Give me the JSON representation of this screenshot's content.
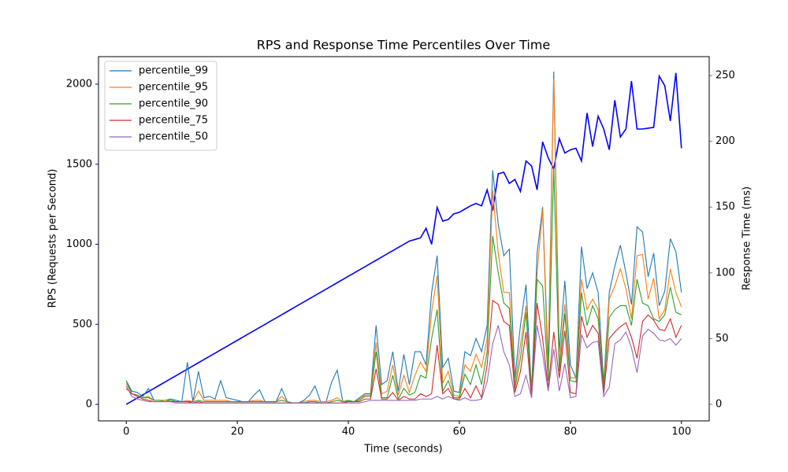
{
  "chart_data": {
    "type": "line",
    "title": "RPS and Response Time Percentiles Over Time",
    "x_label": "Time (seconds)",
    "y_label": "RPS (Requests per Second)",
    "y2_label": "Response Time (ms)",
    "y_color": "#0000ff",
    "y2_color": "#808080",
    "legend": "upper left",
    "x": [
      0,
      1,
      2,
      3,
      4,
      5,
      6,
      7,
      8,
      9,
      10,
      11,
      12,
      13,
      14,
      15,
      16,
      17,
      18,
      19,
      20,
      21,
      22,
      23,
      24,
      25,
      26,
      27,
      28,
      29,
      30,
      31,
      32,
      33,
      34,
      35,
      36,
      37,
      38,
      39,
      40,
      41,
      42,
      43,
      44,
      45,
      46,
      47,
      48,
      49,
      50,
      51,
      52,
      53,
      54,
      55,
      56,
      57,
      58,
      59,
      60,
      61,
      62,
      63,
      64,
      65,
      66,
      67,
      68,
      69,
      70,
      71,
      72,
      73,
      74,
      75,
      76,
      77,
      78,
      79,
      80,
      81,
      82,
      83,
      84,
      85,
      86,
      87,
      88,
      89,
      90,
      91,
      92,
      93,
      94,
      95,
      96,
      97,
      98,
      99,
      100
    ],
    "xlim": [
      -5,
      105
    ],
    "xticks": [
      0,
      20,
      40,
      60,
      80,
      100
    ],
    "ylim": [
      -103,
      2172
    ],
    "yticks": [
      0,
      500,
      1000,
      1500,
      2000
    ],
    "y2lim": [
      -12.6,
      264.4
    ],
    "y2ticks": [
      0,
      50,
      100,
      150,
      200,
      250
    ],
    "series": [
      {
        "color": "#0000ff",
        "axis": "y",
        "values": [
          0,
          20,
          40,
          60,
          80,
          100,
          120,
          140,
          160,
          180,
          200,
          220,
          240,
          260,
          280,
          300,
          320,
          340,
          360,
          380,
          400,
          420,
          440,
          460,
          480,
          500,
          520,
          540,
          560,
          580,
          600,
          620,
          640,
          660,
          680,
          700,
          720,
          740,
          760,
          780,
          800,
          820,
          840,
          860,
          880,
          900,
          920,
          940,
          960,
          980,
          1000,
          1020,
          1030,
          1040,
          1100,
          1000,
          1230,
          1145,
          1155,
          1190,
          1200,
          1220,
          1240,
          1255,
          1240,
          1340,
          1210,
          1440,
          1450,
          1380,
          1405,
          1330,
          1520,
          1490,
          1340,
          1640,
          1540,
          1470,
          1660,
          1570,
          1590,
          1600,
          1520,
          1820,
          1610,
          1800,
          1720,
          1590,
          1900,
          1670,
          1720,
          2020,
          1720,
          1720,
          1725,
          1730,
          2050,
          1990,
          1770,
          2070,
          1600
        ]
      },
      {
        "name": "percentile_99",
        "color": "#1f77b4",
        "axis": "y2",
        "values": [
          18,
          10,
          9,
          6,
          12,
          3,
          3,
          3,
          4,
          3,
          2,
          32,
          2,
          25,
          5,
          6,
          4,
          18,
          5,
          4,
          3,
          2,
          2,
          7,
          11,
          2,
          2,
          2,
          12,
          2,
          1,
          1,
          3,
          7,
          14,
          2,
          2,
          17,
          26,
          2,
          3,
          2,
          5,
          8,
          8,
          60,
          15,
          18,
          40,
          10,
          38,
          15,
          40,
          40,
          30,
          85,
          113,
          28,
          35,
          10,
          9,
          40,
          37,
          50,
          40,
          60,
          178,
          137,
          113,
          118,
          20,
          60,
          91,
          10,
          115,
          150,
          30,
          253,
          40,
          94,
          30,
          20,
          120,
          88,
          100,
          85,
          16,
          85,
          105,
          121,
          100,
          76,
          135,
          131,
          97,
          115,
          75,
          86,
          126,
          116,
          85
        ]
      },
      {
        "name": "percentile_95",
        "color": "#ff7f0e",
        "axis": "y2",
        "values": [
          16,
          8,
          7,
          5,
          6,
          3,
          3,
          3,
          3,
          2,
          2,
          3,
          2,
          10,
          3,
          3,
          3,
          3,
          3,
          2,
          2,
          2,
          2,
          3,
          3,
          2,
          2,
          2,
          6,
          2,
          1,
          1,
          2,
          3,
          3,
          2,
          2,
          3,
          5,
          2,
          2,
          2,
          4,
          7,
          7,
          47,
          8,
          10,
          30,
          7,
          22,
          9,
          22,
          32,
          25,
          70,
          98,
          16,
          25,
          7,
          6,
          30,
          25,
          38,
          28,
          50,
          163,
          115,
          85,
          85,
          15,
          45,
          75,
          8,
          100,
          148,
          20,
          248,
          30,
          76,
          20,
          20,
          95,
          72,
          80,
          72,
          12,
          80,
          90,
          103,
          88,
          65,
          113,
          114,
          80,
          96,
          65,
          72,
          103,
          85,
          74
        ]
      },
      {
        "name": "percentile_90",
        "color": "#2ca02c",
        "axis": "y2",
        "values": [
          18,
          8,
          7,
          5,
          5,
          3,
          3,
          2,
          3,
          2,
          2,
          2,
          2,
          3,
          2,
          2,
          2,
          2,
          2,
          2,
          2,
          2,
          2,
          2,
          2,
          2,
          2,
          2,
          3,
          2,
          1,
          1,
          1,
          2,
          2,
          1,
          1,
          2,
          3,
          2,
          3,
          2,
          3,
          6,
          6,
          40,
          5,
          5,
          22,
          4,
          12,
          7,
          9,
          22,
          20,
          50,
          72,
          10,
          18,
          5,
          5,
          23,
          15,
          30,
          15,
          40,
          128,
          100,
          77,
          73,
          12,
          35,
          70,
          8,
          95,
          90,
          18,
          180,
          25,
          69,
          18,
          17,
          85,
          60,
          75,
          65,
          12,
          66,
          72,
          75,
          75,
          60,
          95,
          77,
          75,
          65,
          63,
          68,
          89,
          70,
          68
        ]
      },
      {
        "name": "percentile_75",
        "color": "#d62728",
        "axis": "y2",
        "values": [
          12,
          8,
          6,
          4,
          3,
          2,
          2,
          2,
          2,
          2,
          2,
          2,
          1,
          2,
          1,
          1,
          1,
          1,
          1,
          1,
          1,
          1,
          1,
          1,
          1,
          1,
          1,
          1,
          1,
          1,
          1,
          1,
          1,
          1,
          1,
          1,
          1,
          1,
          1,
          1,
          2,
          2,
          2,
          4,
          4,
          27,
          4,
          4,
          9,
          3,
          6,
          4,
          4,
          8,
          6,
          8,
          45,
          8,
          12,
          4,
          4,
          12,
          5,
          14,
          5,
          30,
          79,
          76,
          63,
          60,
          9,
          25,
          55,
          5,
          77,
          50,
          12,
          55,
          20,
          56,
          9,
          8,
          67,
          51,
          60,
          54,
          8,
          50,
          55,
          59,
          62,
          51,
          35,
          63,
          68,
          64,
          57,
          56,
          65,
          51,
          60
        ]
      },
      {
        "name": "percentile_50",
        "color": "#9467bd",
        "axis": "y2",
        "values": [
          14,
          6,
          4,
          3,
          2,
          2,
          2,
          2,
          2,
          1,
          1,
          1,
          1,
          1,
          1,
          1,
          1,
          1,
          1,
          1,
          1,
          1,
          1,
          1,
          1,
          1,
          1,
          1,
          1,
          1,
          1,
          1,
          1,
          1,
          1,
          1,
          1,
          1,
          1,
          1,
          1,
          1,
          1,
          2,
          3,
          3,
          3,
          3,
          3,
          3,
          3,
          3,
          3,
          4,
          4,
          4,
          6,
          4,
          6,
          4,
          3,
          5,
          3,
          3,
          4,
          17,
          46,
          60,
          40,
          30,
          6,
          8,
          22,
          5,
          60,
          38,
          10,
          42,
          10,
          31,
          5,
          6,
          53,
          43,
          47,
          48,
          6,
          13,
          46,
          49,
          55,
          43,
          24,
          52,
          57,
          54,
          49,
          48,
          50,
          45,
          50
        ]
      }
    ]
  }
}
